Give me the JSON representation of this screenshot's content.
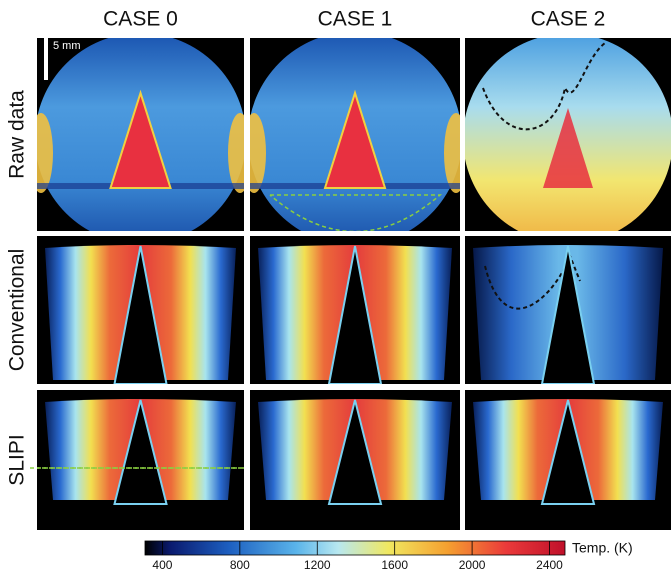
{
  "columns": [
    "CASE 0",
    "CASE 1",
    "CASE 2"
  ],
  "rows": [
    "Raw data",
    "Conventional",
    "SLIPI"
  ],
  "scale_bar": "5 mm",
  "colorbar": {
    "label": "Temp. (K)",
    "range": [
      310,
      2480
    ],
    "ticks": [
      400,
      800,
      1200,
      1600,
      2000,
      2400
    ]
  }
}
